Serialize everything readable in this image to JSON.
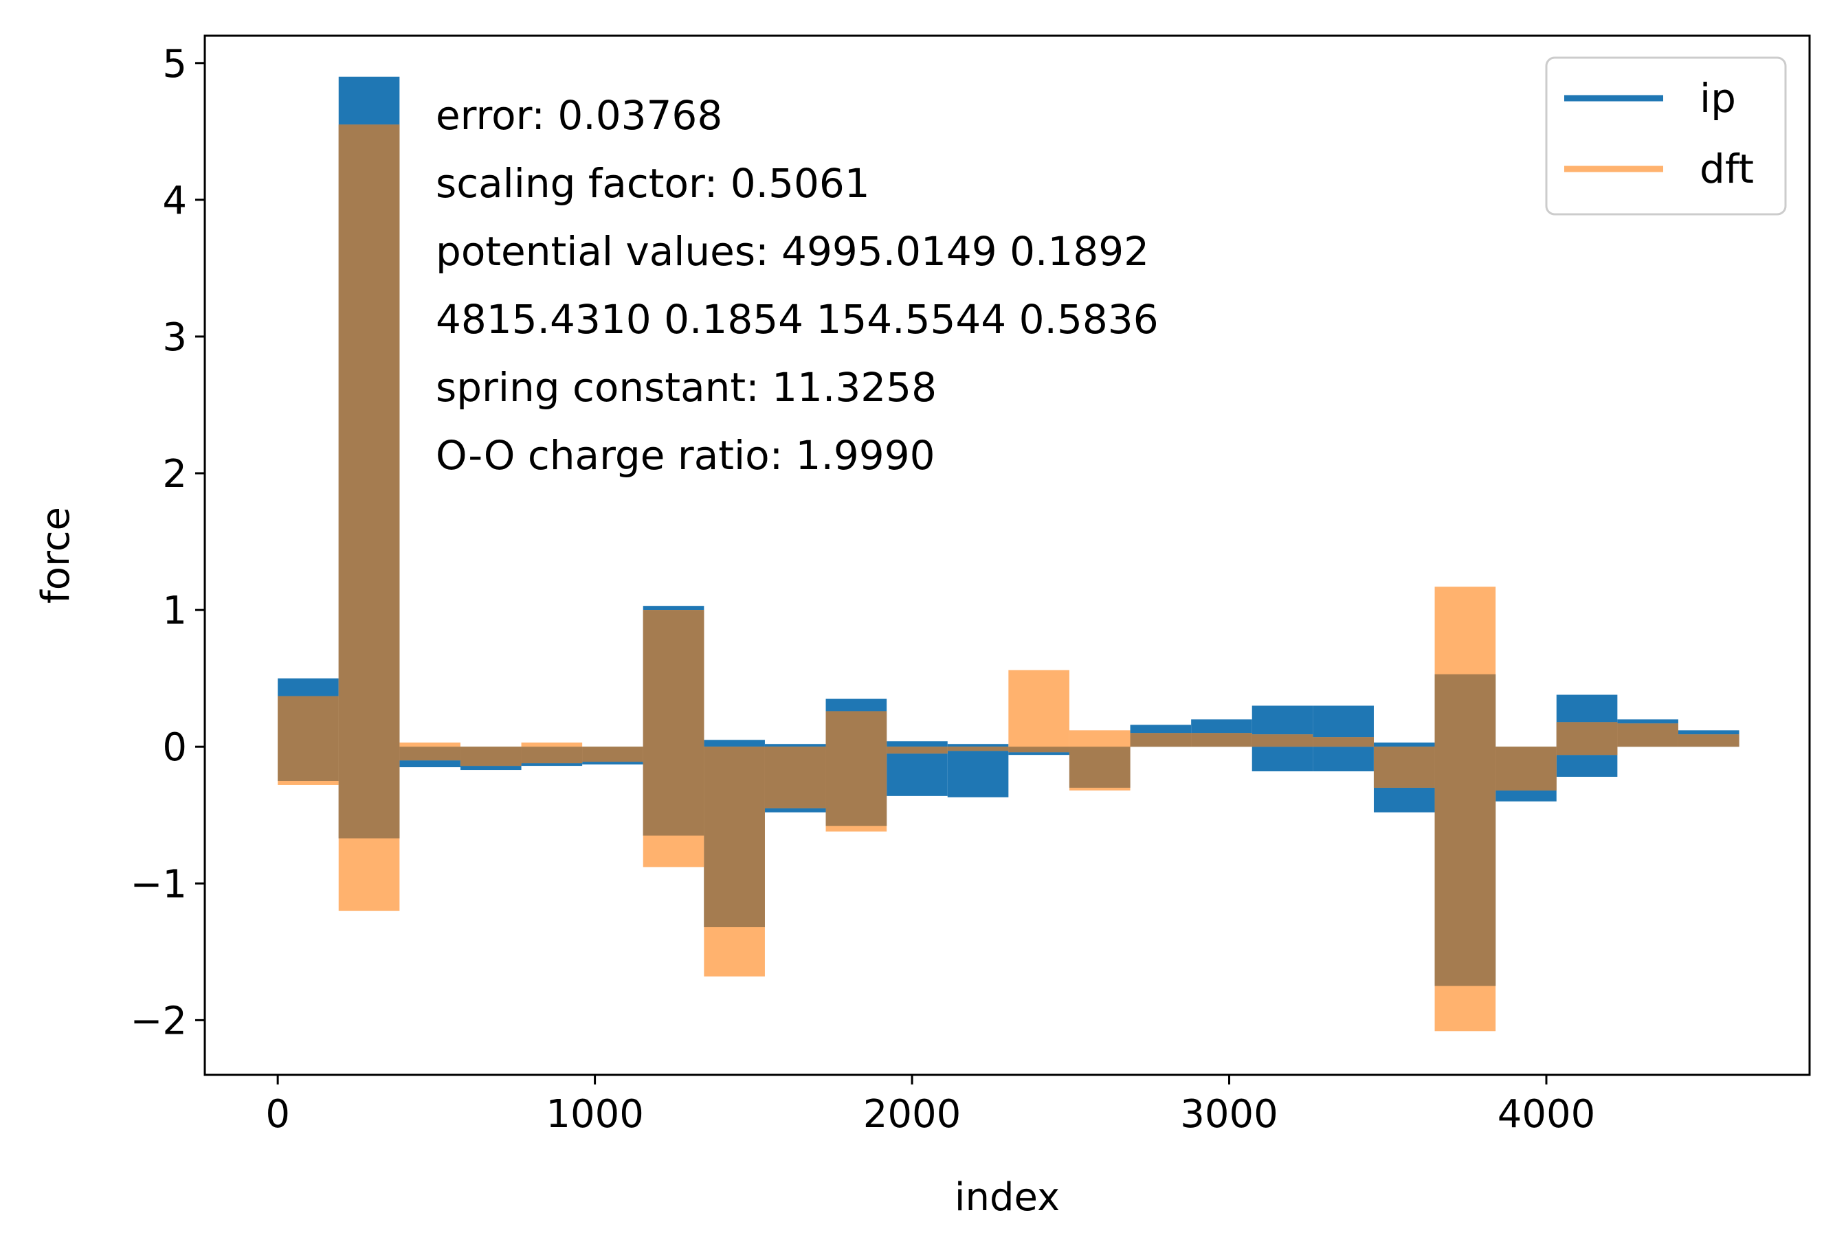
{
  "chart_data": {
    "type": "bar",
    "xlabel": "index",
    "ylabel": "force",
    "xlim": [
      -230,
      4830
    ],
    "ylim": [
      -2.4,
      5.2
    ],
    "xticks": [
      0,
      1000,
      2000,
      3000,
      4000
    ],
    "yticks": [
      -2,
      -1,
      0,
      1,
      2,
      3,
      4,
      5
    ],
    "ytick_labels": [
      "−2",
      "−1",
      "0",
      "1",
      "2",
      "3",
      "4",
      "5"
    ],
    "grid": false,
    "legend_position": "top-right",
    "colors": {
      "ip": "#1f77b4",
      "dft": "#ffb26e",
      "overlap": "#a57c50"
    },
    "annotations": [
      "error: 0.03768",
      "scaling factor: 0.5061",
      "potential values: 4995.0149 0.1892",
      "4815.4310 0.1854 154.5544 0.5836",
      "spring constant: 11.3258",
      "O-O charge ratio: 1.9990"
    ],
    "bin_edges": [
      0,
      192,
      384,
      576,
      768,
      960,
      1152,
      1344,
      1536,
      1728,
      1920,
      2112,
      2304,
      2496,
      2688,
      2880,
      3072,
      3264,
      3456,
      3648,
      3840,
      4032,
      4224,
      4416,
      4608
    ],
    "series": [
      {
        "name": "ip",
        "min": [
          -0.25,
          -0.67,
          -0.15,
          -0.17,
          -0.14,
          -0.13,
          -0.65,
          -1.32,
          -0.48,
          -0.58,
          -0.36,
          -0.37,
          -0.06,
          -0.3,
          0.0,
          0.0,
          -0.18,
          -0.18,
          -0.48,
          -1.75,
          -0.4,
          -0.22,
          0.0,
          0.0
        ],
        "max": [
          0.5,
          4.9,
          0.0,
          0.0,
          0.0,
          0.0,
          1.03,
          0.05,
          0.02,
          0.35,
          0.04,
          0.02,
          0.0,
          0.0,
          0.16,
          0.2,
          0.3,
          0.3,
          0.03,
          0.53,
          0.0,
          0.38,
          0.2,
          0.12
        ]
      },
      {
        "name": "dft",
        "min": [
          -0.28,
          -1.2,
          -0.1,
          -0.14,
          -0.12,
          -0.11,
          -0.88,
          -1.68,
          -0.45,
          -0.62,
          -0.05,
          -0.03,
          -0.04,
          -0.32,
          0.0,
          0.0,
          0.0,
          0.0,
          -0.3,
          -2.08,
          -0.32,
          -0.06,
          0.0,
          0.0
        ],
        "max": [
          0.37,
          4.55,
          0.03,
          0.0,
          0.03,
          0.0,
          1.0,
          0.0,
          0.0,
          0.26,
          0.0,
          0.0,
          0.56,
          0.12,
          0.1,
          0.1,
          0.09,
          0.07,
          0.0,
          1.17,
          0.0,
          0.18,
          0.17,
          0.09
        ]
      }
    ]
  }
}
